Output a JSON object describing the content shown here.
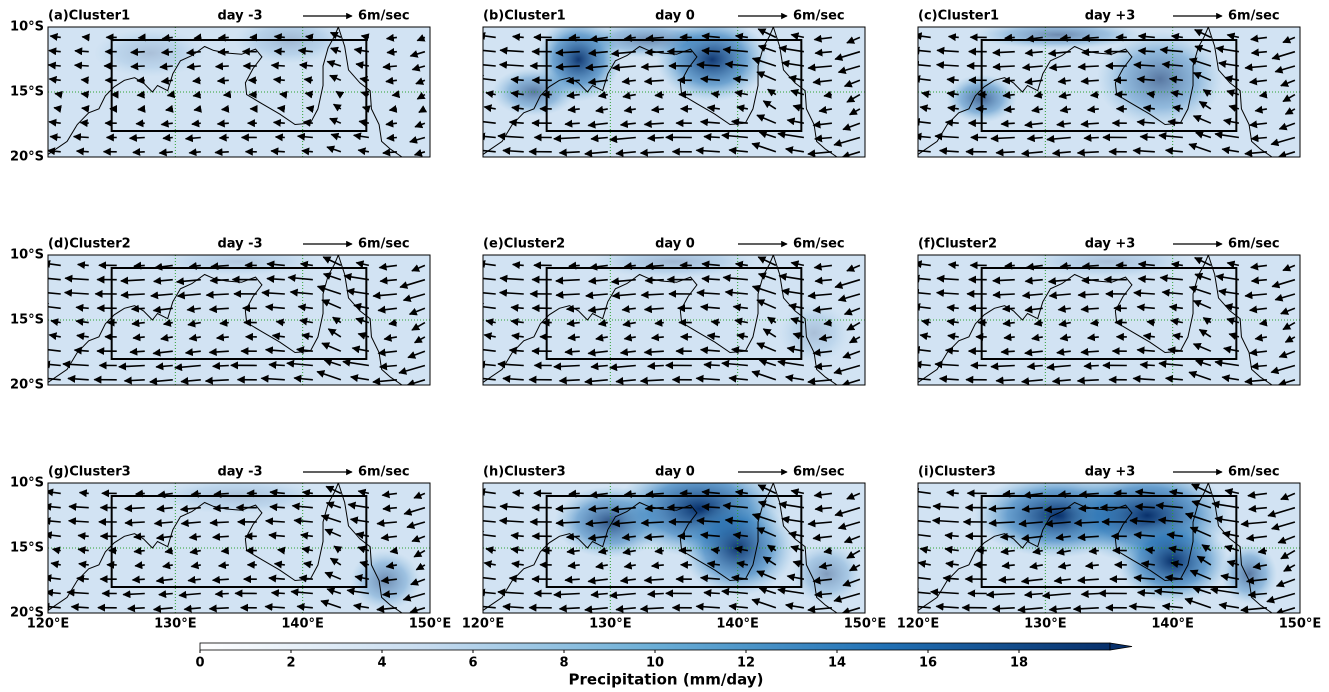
{
  "panels": [
    {
      "label": "(a)Cluster1",
      "day": "day -3",
      "ref": "6m/sec"
    },
    {
      "label": "(b)Cluster1",
      "day": "day 0",
      "ref": "6m/sec"
    },
    {
      "label": "(c)Cluster1",
      "day": "day +3",
      "ref": "6m/sec"
    },
    {
      "label": "(d)Cluster2",
      "day": "day -3",
      "ref": "6m/sec"
    },
    {
      "label": "(e)Cluster2",
      "day": "day 0",
      "ref": "6m/sec"
    },
    {
      "label": "(f)Cluster2",
      "day": "day +3",
      "ref": "6m/sec"
    },
    {
      "label": "(g)Cluster3",
      "day": "day -3",
      "ref": "6m/sec"
    },
    {
      "label": "(h)Cluster3",
      "day": "day 0",
      "ref": "6m/sec"
    },
    {
      "label": "(i)Cluster3",
      "day": "day +3",
      "ref": "6m/sec"
    }
  ],
  "map": {
    "xlim": [
      120,
      150
    ],
    "ylim": [
      -20,
      -10
    ],
    "xticks": [
      {
        "value": 120,
        "label": "120°E"
      },
      {
        "value": 130,
        "label": "130°E"
      },
      {
        "value": 140,
        "label": "140°E"
      },
      {
        "value": 150,
        "label": "150°E"
      }
    ],
    "yticks": [
      {
        "value": -10,
        "label": "10°S"
      },
      {
        "value": -15,
        "label": "15°S"
      },
      {
        "value": -20,
        "label": "20°S"
      }
    ]
  },
  "colorbar": {
    "label": "Precipitation (mm/day)",
    "lim": [
      0,
      20
    ],
    "ticks": [
      0,
      2,
      4,
      6,
      8,
      10,
      12,
      14,
      16,
      18
    ]
  }
}
